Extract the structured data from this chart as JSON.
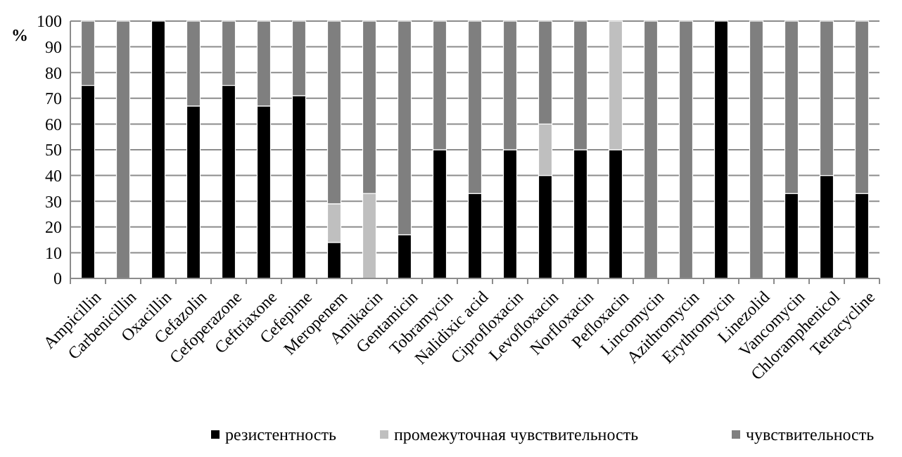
{
  "chart_data": {
    "type": "bar",
    "stacked": true,
    "ylabel": "%",
    "ylim": [
      0,
      100
    ],
    "yticks": [
      0,
      10,
      20,
      30,
      40,
      50,
      60,
      70,
      80,
      90,
      100
    ],
    "grid": "y",
    "legend": "bottom",
    "categories": [
      "Ampicillin",
      "Carbenicillin",
      "Oxacillin",
      "Cefazolin",
      "Cefoperazone",
      "Ceftriaxone",
      "Cefepime",
      "Meropenem",
      "Amikacin",
      "Gentamicin",
      "Tobramycin",
      "Nalidixic acid",
      "Ciprofloxacin",
      "Levofloxacin",
      "Norfloxacin",
      "Pefloxacin",
      "Lincomycin",
      "Azithromycin",
      "Erythromycin",
      "Linezolid",
      "Vancomycin",
      "Chloramphenicol",
      "Tetracycline"
    ],
    "series": [
      {
        "name": "резистентность",
        "color": "#000000",
        "values": [
          75,
          0,
          100,
          67,
          75,
          67,
          71,
          14,
          0,
          17,
          50,
          33,
          50,
          40,
          50,
          50,
          0,
          0,
          100,
          0,
          33,
          40,
          33
        ]
      },
      {
        "name": "промежуточная чувствительность",
        "color": "#bfbfbf",
        "values": [
          0,
          0,
          0,
          0,
          0,
          0,
          0,
          15,
          33,
          0,
          0,
          0,
          0,
          20,
          0,
          50,
          0,
          0,
          0,
          0,
          0,
          0,
          0
        ]
      },
      {
        "name": "чувствительность",
        "color": "#7f7f7f",
        "values": [
          25,
          100,
          0,
          33,
          25,
          33,
          29,
          71,
          67,
          83,
          50,
          67,
          50,
          40,
          50,
          0,
          100,
          100,
          0,
          100,
          67,
          60,
          67
        ]
      }
    ]
  }
}
